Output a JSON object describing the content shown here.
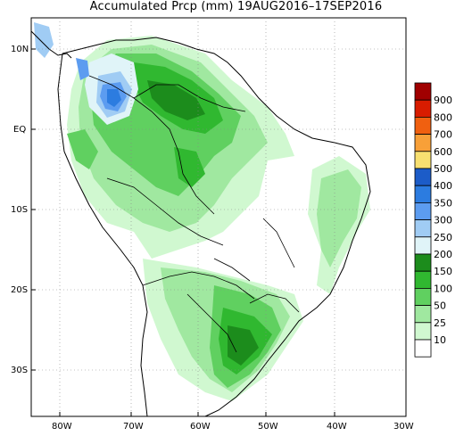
{
  "title": "Accumulated Prcp (mm) 19AUG2016–17SEP2016",
  "latitude_labels": [
    "10N",
    "EQ",
    "10S",
    "20S",
    "30S"
  ],
  "longitude_labels": [
    "80W",
    "70W",
    "60W",
    "50W",
    "40W",
    "30W"
  ],
  "colorbar": {
    "levels": [
      "900",
      "800",
      "700",
      "600",
      "500",
      "400",
      "350",
      "300",
      "250",
      "200",
      "150",
      "100",
      "50",
      "25",
      "10"
    ],
    "colors": [
      "#a00000",
      "#d81c00",
      "#f06010",
      "#f8a038",
      "#f8e070",
      "#1c5cc8",
      "#2c7ce0",
      "#5c9cf0",
      "#a0ccf4",
      "#e0f4f8",
      "#1c8c1c",
      "#30b830",
      "#60d060",
      "#a0e8a0",
      "#d0f8d0",
      "#ffffff"
    ]
  },
  "legend_colors": {
    "land_border": "#000000",
    "grid": "#888888"
  }
}
